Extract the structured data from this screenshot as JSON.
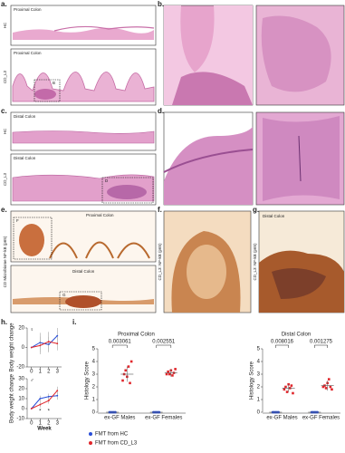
{
  "panels": {
    "a": "a.",
    "b": "b.",
    "c": "c.",
    "d": "d.",
    "e": "e.",
    "f": "f.",
    "g": "g.",
    "h": "h.",
    "i": "i."
  },
  "a": {
    "top_label": "Proximal Colon",
    "top_row": "HC",
    "bottom_label": "Proximal Colon",
    "bottom_row": "CD_L3",
    "inset": "B"
  },
  "c": {
    "top_label": "Distal Colon",
    "top_row": "HC",
    "bottom_label": "Distal Colon",
    "bottom_row": "CD_L3",
    "inset": "D"
  },
  "e": {
    "top_label": "Proximal Colon",
    "bottom_label": "Distal Colon",
    "inset_top": "F",
    "inset_bottom": "G",
    "side_label": "CD Microbiome NF-kB (p65)"
  },
  "f": {
    "side_label": "CD_L3: NF-kB (p65)"
  },
  "g": {
    "label": "Distal Colon",
    "side_label": "CD_L3: NF-kB (p65)"
  },
  "chart_data": [
    {
      "type": "line",
      "symbol": "♀",
      "ylabel": "Body weight change",
      "x": [
        0,
        1,
        2,
        3
      ],
      "xlim": [
        -0.5,
        3.5
      ],
      "xticks": [
        0,
        1,
        2,
        3
      ],
      "ylim": [
        -20,
        20
      ],
      "yticks": [
        -20,
        0,
        20
      ],
      "series": [
        {
          "name": "FMT from HC",
          "color": "#2a4fd8",
          "values": [
            0,
            5,
            3,
            12
          ],
          "errors": [
            0,
            10,
            8,
            8
          ]
        },
        {
          "name": "FMT from CD_L3",
          "color": "#e0262b",
          "values": [
            0,
            2,
            6,
            4
          ],
          "errors": [
            0,
            9,
            10,
            7
          ]
        }
      ]
    },
    {
      "type": "line",
      "symbol": "♂",
      "ylabel": "Body weight change",
      "xlabel": "Week",
      "x": [
        0,
        1,
        2,
        3
      ],
      "xlim": [
        -0.5,
        3.5
      ],
      "xticks": [
        0,
        1,
        2,
        3
      ],
      "ylim": [
        -10,
        30
      ],
      "yticks": [
        -10,
        0,
        10,
        20,
        30
      ],
      "annotations": [
        {
          "text": "*",
          "x": 1
        },
        {
          "text": "*",
          "x": 2
        }
      ],
      "series": [
        {
          "name": "FMT from HC",
          "color": "#2a4fd8",
          "values": [
            0,
            10,
            12,
            13
          ],
          "errors": [
            0,
            3,
            3,
            4
          ]
        },
        {
          "name": "FMT from CD_L3",
          "color": "#e0262b",
          "values": [
            0,
            4,
            8,
            18
          ],
          "errors": [
            0,
            3,
            3,
            4
          ]
        }
      ]
    },
    {
      "type": "scatter",
      "title": "Proximal Colon",
      "ylabel": "Histology Score",
      "categories": [
        "ex-GF Males",
        "ex-GF Females"
      ],
      "ylim": [
        0,
        5
      ],
      "yticks": [
        0,
        1,
        2,
        3,
        4,
        5
      ],
      "pvalues": [
        "0.003061",
        "0.002551"
      ],
      "legend": "bottom-left",
      "series": [
        {
          "name": "FMT from HC",
          "color": "#2a4fd8",
          "values": [
            [
              0,
              0,
              0,
              0,
              0
            ],
            [
              0,
              0,
              0,
              0,
              0
            ]
          ],
          "means": [
            0,
            0
          ],
          "sds": [
            0,
            0
          ]
        },
        {
          "name": "FMT from CD_L3",
          "color": "#e0262b",
          "values": [
            [
              2.5,
              3,
              3.3,
              2.8,
              3.6,
              2.3,
              4
            ],
            [
              3,
              3.2,
              3,
              3.3,
              2.9,
              3.1,
              3.4
            ]
          ],
          "means": [
            3,
            3.1
          ],
          "sds": [
            0.6,
            0.3
          ]
        }
      ]
    },
    {
      "type": "scatter",
      "title": "Distal Colon",
      "ylabel": "Histology Score",
      "categories": [
        "ex-GF Males",
        "ex-GF Females"
      ],
      "ylim": [
        0,
        5
      ],
      "yticks": [
        0,
        1,
        2,
        3,
        4,
        5
      ],
      "pvalues": [
        "0.008016",
        "0.001275"
      ],
      "series": [
        {
          "name": "FMT from HC",
          "color": "#2a4fd8",
          "values": [
            [
              0,
              0,
              0,
              0,
              0
            ],
            [
              0,
              0,
              0,
              0,
              0
            ]
          ],
          "means": [
            0,
            0
          ],
          "sds": [
            0,
            0
          ]
        },
        {
          "name": "FMT from CD_L3",
          "color": "#e0262b",
          "values": [
            [
              1.8,
              2,
              1.6,
              2.2,
              1.9,
              2.1,
              1.5
            ],
            [
              2,
              2.1,
              1.9,
              2.3,
              2.6,
              2,
              1.8
            ]
          ],
          "means": [
            1.9,
            2.1
          ],
          "sds": [
            0.3,
            0.4
          ]
        }
      ]
    }
  ]
}
